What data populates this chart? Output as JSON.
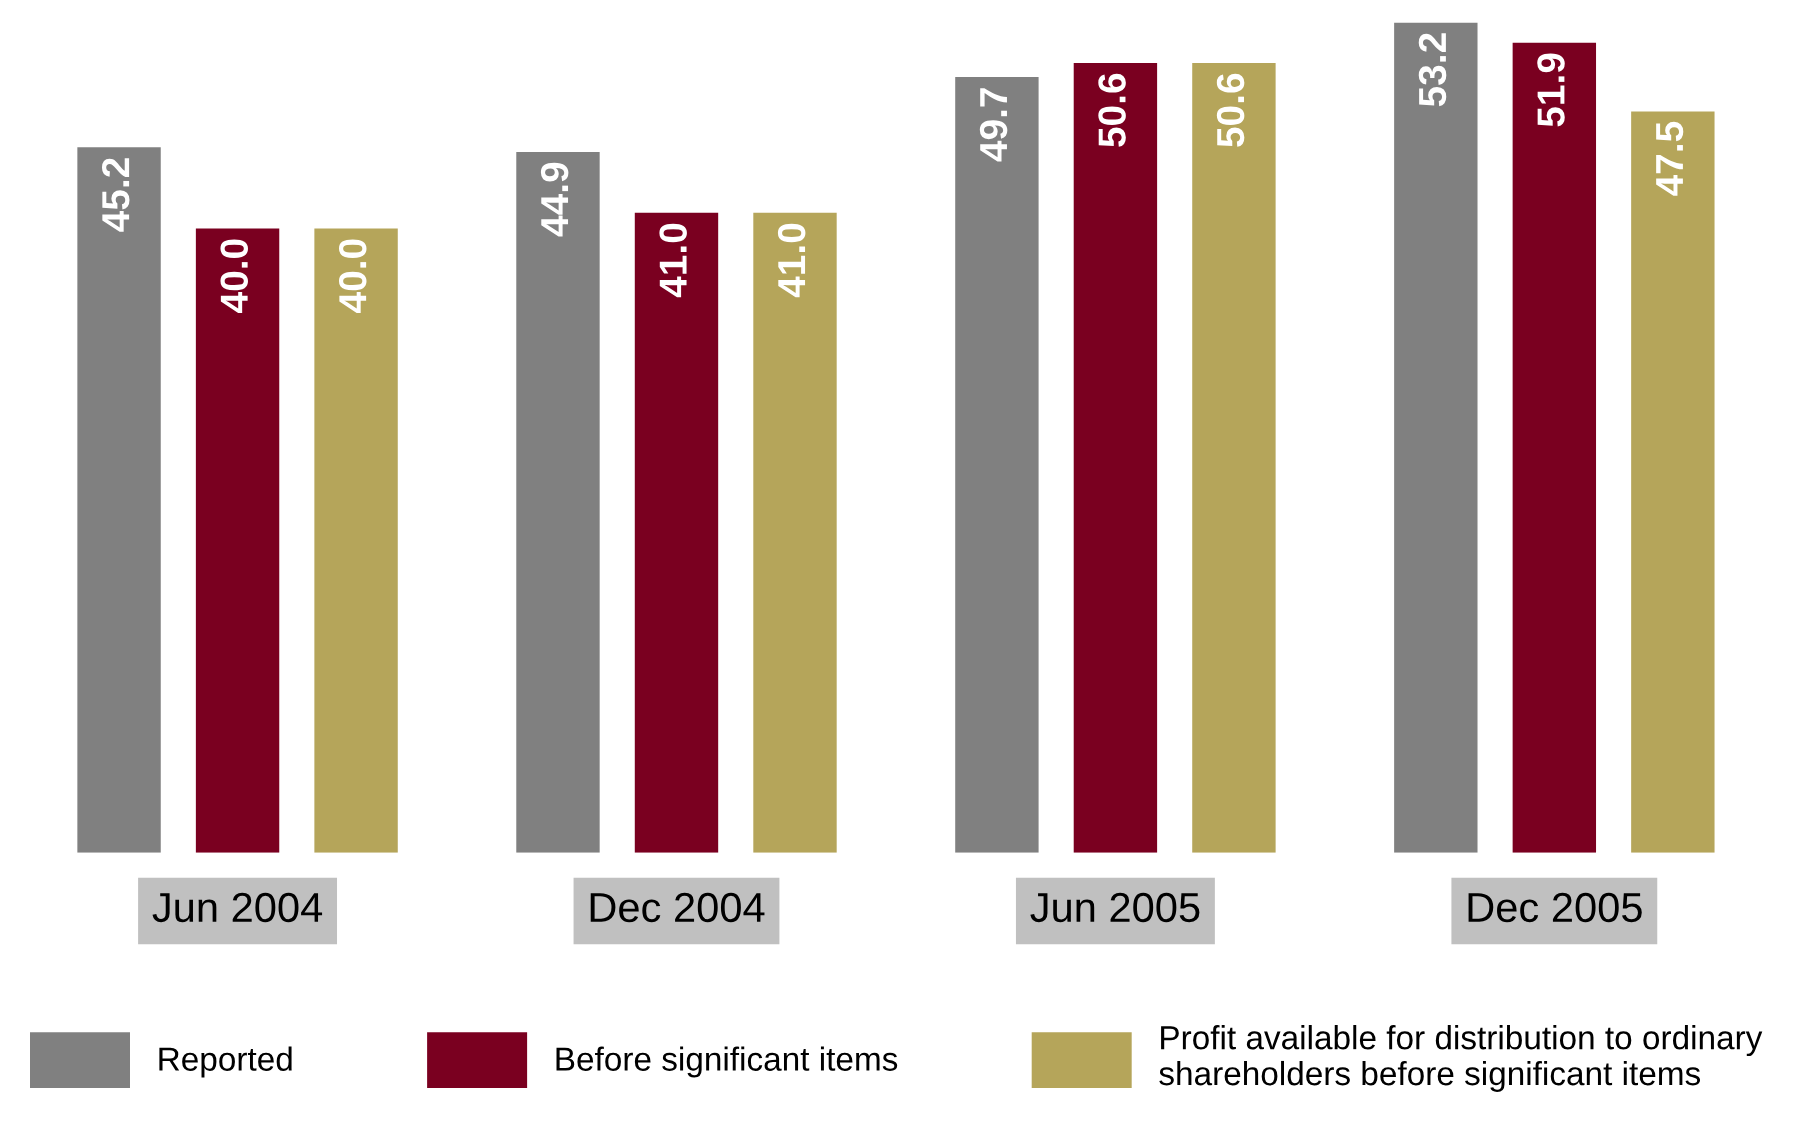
{
  "chart_data": {
    "type": "bar",
    "categories": [
      "Jun 2004",
      "Dec 2004",
      "Jun 2005",
      "Dec 2005"
    ],
    "series": [
      {
        "name": "Reported",
        "color": "#808080",
        "values": [
          45.2,
          44.9,
          49.7,
          53.2
        ],
        "value_labels": [
          "45.2",
          "44.9",
          "49.7",
          "53.2"
        ]
      },
      {
        "name": "Before significant items",
        "color": "#7a0020",
        "values": [
          40.0,
          41.0,
          50.6,
          51.9
        ],
        "value_labels": [
          "40.0",
          "41.0",
          "50.6",
          "51.9"
        ]
      },
      {
        "name": "Profit available for distribution to ordinary\nshareholders before significant items",
        "color": "#b5a55a",
        "values": [
          40.0,
          41.0,
          50.6,
          47.5
        ],
        "value_labels": [
          "40.0",
          "41.0",
          "50.6",
          "47.5"
        ]
      }
    ],
    "legend": "bottom",
    "grid": false
  }
}
